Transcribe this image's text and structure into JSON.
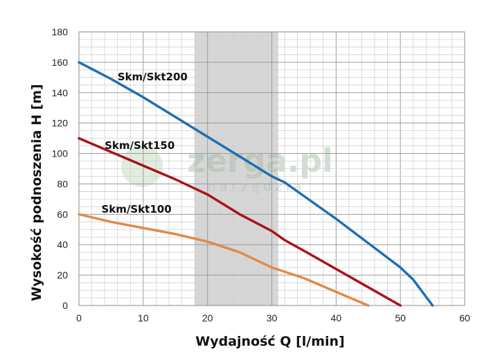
{
  "chart_data": {
    "type": "line",
    "title": "",
    "xlabel": "Wydajność Q [l/min]",
    "ylabel": "Wysokość podnoszenia H [m]",
    "xlim": [
      0,
      60
    ],
    "ylim": [
      0,
      180
    ],
    "x_ticks": [
      0,
      10,
      20,
      30,
      40,
      50,
      60
    ],
    "y_ticks": [
      0,
      20,
      40,
      60,
      80,
      100,
      120,
      140,
      160,
      180
    ],
    "grid": true,
    "highlight_band": {
      "x_from": 18,
      "x_to": 31,
      "color": "#d6d6d6"
    },
    "series": [
      {
        "name": "Skm/Skt200",
        "color": "#1f6fb0",
        "x": [
          0,
          5,
          10,
          15,
          20,
          25,
          30,
          32,
          35,
          40,
          45,
          50,
          52,
          55
        ],
        "y": [
          160,
          149,
          137,
          124,
          111,
          98,
          85,
          81,
          72,
          57,
          41,
          25,
          17,
          0
        ]
      },
      {
        "name": "Skm/Skt150",
        "color": "#a8141a",
        "x": [
          0,
          5,
          10,
          15,
          20,
          25,
          30,
          32,
          35,
          40,
          45,
          50
        ],
        "y": [
          110,
          101,
          92,
          83,
          73,
          60,
          49,
          43,
          36,
          24,
          12,
          0
        ]
      },
      {
        "name": "Skm/Skt100",
        "color": "#e08a47",
        "x": [
          0,
          5,
          10,
          15,
          20,
          25,
          30,
          35,
          40,
          45
        ],
        "y": [
          60,
          55,
          51,
          47,
          42,
          35,
          25,
          18,
          9,
          0
        ]
      }
    ],
    "annotations": [
      {
        "text": "Skm/Skt200",
        "x": 6,
        "y": 148
      },
      {
        "text": "Skm/Skt150",
        "x": 4,
        "y": 103
      },
      {
        "text": "Skm/Skt100",
        "x": 3.5,
        "y": 61
      }
    ]
  },
  "watermark": {
    "main": "zerga.pl",
    "sub": "narzędzia"
  }
}
